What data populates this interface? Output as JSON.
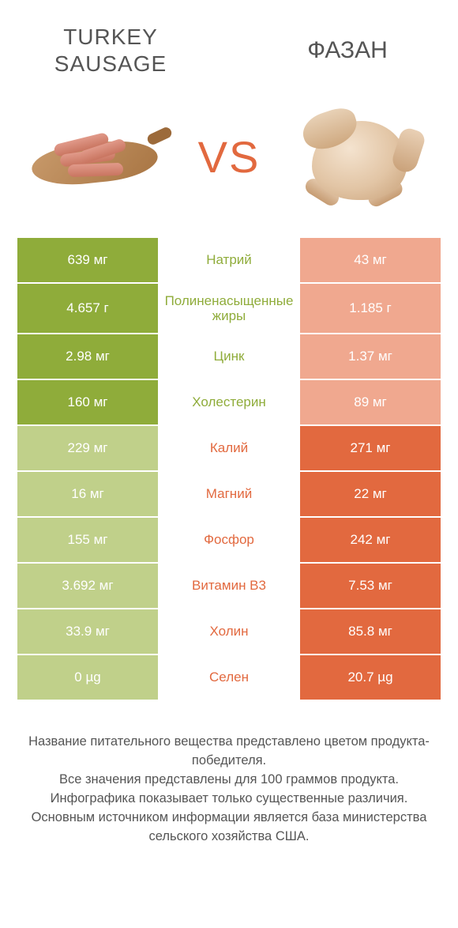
{
  "colors": {
    "green": "#8fac3a",
    "green_dim": "#c0d08a",
    "orange": "#e2693f",
    "orange_dim": "#f0a88f",
    "text": "#555555",
    "white": "#ffffff"
  },
  "header": {
    "left_title": "TURKEY SAUSAGE",
    "right_title": "ФАЗАН",
    "vs": "VS"
  },
  "rows": [
    {
      "nutrient": "Натрий",
      "left": "639 мг",
      "right": "43 мг",
      "winner": "left"
    },
    {
      "nutrient": "Полиненасыщенные жиры",
      "left": "4.657 г",
      "right": "1.185 г",
      "winner": "left",
      "tall": true
    },
    {
      "nutrient": "Цинк",
      "left": "2.98 мг",
      "right": "1.37 мг",
      "winner": "left"
    },
    {
      "nutrient": "Холестерин",
      "left": "160 мг",
      "right": "89 мг",
      "winner": "left"
    },
    {
      "nutrient": "Калий",
      "left": "229 мг",
      "right": "271 мг",
      "winner": "right"
    },
    {
      "nutrient": "Магний",
      "left": "16 мг",
      "right": "22 мг",
      "winner": "right"
    },
    {
      "nutrient": "Фосфор",
      "left": "155 мг",
      "right": "242 мг",
      "winner": "right"
    },
    {
      "nutrient": "Витамин B3",
      "left": "3.692 мг",
      "right": "7.53 мг",
      "winner": "right"
    },
    {
      "nutrient": "Холин",
      "left": "33.9 мг",
      "right": "85.8 мг",
      "winner": "right"
    },
    {
      "nutrient": "Селен",
      "left": "0 µg",
      "right": "20.7 µg",
      "winner": "right"
    }
  ],
  "footer": {
    "line1": "Название питательного вещества представлено цветом продукта-победителя.",
    "line2": "Все значения представлены для 100 граммов продукта.",
    "line3": "Инфографика показывает только существенные различия.",
    "line4": "Основным источником информации является база министерства сельского хозяйства США."
  }
}
